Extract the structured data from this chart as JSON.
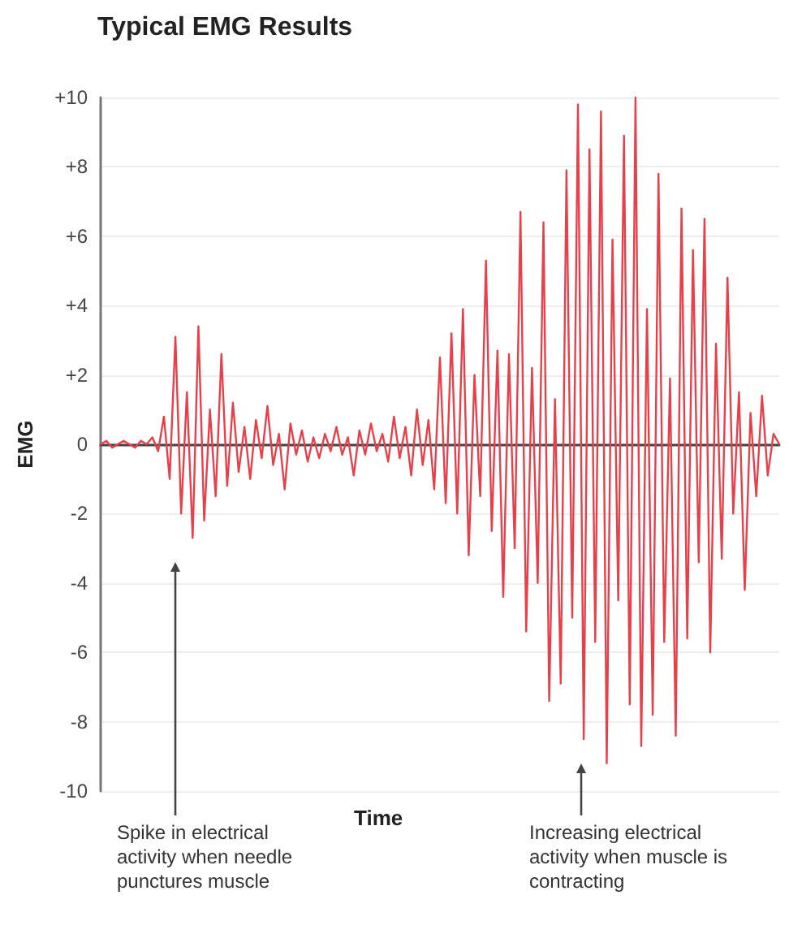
{
  "chart_data": {
    "type": "line",
    "title": "Typical EMG Results",
    "xlabel": "Time",
    "ylabel": "EMG",
    "annotations": [
      "Spike in electrical activity when needle punctures muscle",
      "Increasing electrical activity when muscle is contracting"
    ],
    "categories": [
      null,
      null,
      null,
      null,
      null,
      null,
      null,
      null,
      null,
      null,
      null,
      null,
      null,
      null,
      null,
      null,
      null,
      null,
      null,
      null,
      null,
      null,
      null,
      null,
      null,
      null,
      null,
      null,
      null,
      null,
      null,
      null,
      null,
      null,
      null,
      null,
      null,
      null,
      null,
      null,
      null,
      null,
      null,
      null,
      null,
      null,
      null,
      null,
      null,
      null,
      null,
      null,
      null,
      null,
      null,
      null,
      null,
      null,
      null,
      null,
      null,
      null,
      null,
      null,
      null,
      null,
      null,
      null,
      null,
      null,
      null,
      null,
      null,
      null,
      null,
      null,
      null,
      null,
      null,
      null,
      null,
      null,
      null,
      null,
      null,
      null,
      null,
      null,
      null,
      null,
      null,
      null,
      null,
      null,
      null,
      null,
      null,
      null,
      null,
      null,
      null,
      null,
      null,
      null,
      null,
      null,
      null,
      null,
      null,
      null,
      null,
      null,
      null,
      null,
      null,
      null,
      null,
      null,
      null
    ],
    "series": [
      {
        "color": "#e8404a",
        "values": [
          0,
          0.1,
          -0.1,
          0,
          0.1,
          0,
          -0.1,
          0.1,
          0,
          0.2,
          -0.2,
          0.8,
          -1.0,
          3.1,
          -2.0,
          1.5,
          -2.7,
          3.4,
          -2.2,
          1.0,
          -1.5,
          2.6,
          -1.2,
          1.2,
          -0.8,
          0.5,
          -1.0,
          0.7,
          -0.4,
          1.1,
          -0.6,
          0.3,
          -1.3,
          0.6,
          -0.3,
          0.4,
          -0.5,
          0.2,
          -0.4,
          0.3,
          -0.2,
          0.5,
          -0.3,
          0.2,
          -0.9,
          0.4,
          -0.3,
          0.6,
          -0.2,
          0.3,
          -0.5,
          0.8,
          -0.4,
          0.5,
          -0.9,
          1.0,
          -0.6,
          0.7,
          -1.3,
          2.5,
          -1.7,
          3.2,
          -2.0,
          3.9,
          -3.2,
          2.0,
          -1.5,
          5.3,
          -2.5,
          2.7,
          -4.4,
          2.6,
          -3.0,
          6.7,
          -5.4,
          2.2,
          -4.0,
          6.4,
          -7.4,
          1.3,
          -6.9,
          7.9,
          -5.0,
          9.8,
          -8.5,
          8.5,
          -5.7,
          9.6,
          -9.2,
          5.9,
          -4.5,
          8.9,
          -7.5,
          10.0,
          -8.7,
          3.9,
          -7.8,
          7.8,
          -5.7,
          1.9,
          -8.4,
          6.8,
          -5.6,
          5.6,
          -3.4,
          6.5,
          -6.0,
          2.9,
          -3.3,
          4.8,
          -2.0,
          1.5,
          -4.2,
          0.9,
          -1.5,
          1.4,
          -0.9,
          0.3,
          0
        ]
      }
    ],
    "ylim": [
      -10,
      10
    ],
    "yticks": [
      {
        "value": -10,
        "label": "-10"
      },
      {
        "value": -8,
        "label": "-8"
      },
      {
        "value": -6,
        "label": "-6"
      },
      {
        "value": -4,
        "label": "-4"
      },
      {
        "value": -2,
        "label": "-2"
      },
      0,
      {
        "value": 2,
        "label": "+2"
      },
      {
        "value": 4,
        "label": "+4"
      },
      {
        "value": 6,
        "label": "+6"
      },
      {
        "value": 8,
        "label": "+8"
      },
      {
        "value": 10,
        "label": "+10"
      }
    ],
    "grid": "y",
    "marker": "none",
    "line_style": "solid"
  }
}
